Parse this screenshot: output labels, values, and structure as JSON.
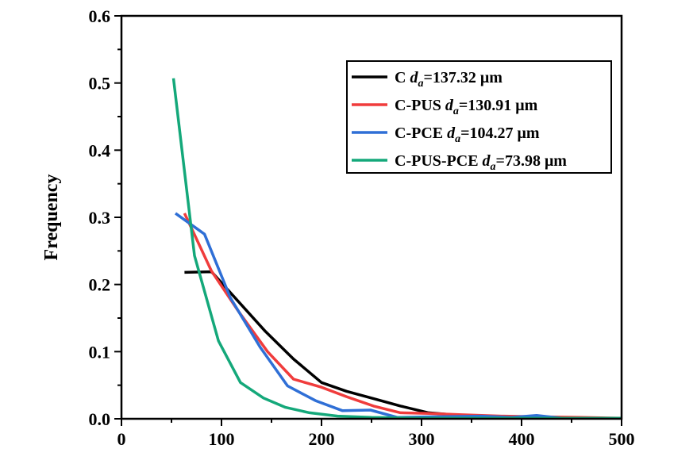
{
  "chart_data": {
    "type": "line",
    "title": "",
    "xlabel": "",
    "ylabel": "Frequency",
    "xlim": [
      0,
      500
    ],
    "ylim": [
      0,
      0.6
    ],
    "xticks": [
      "0",
      "100",
      "200",
      "300",
      "400",
      "500"
    ],
    "yticks": [
      "0.0",
      "0.1",
      "0.2",
      "0.3",
      "0.4",
      "0.5",
      "0.6"
    ],
    "legend_position": "top-right",
    "series": [
      {
        "name": "C",
        "label_value": "=137.32 μm",
        "color": "#000000",
        "x": [
          63,
          90,
          144,
          172,
          200,
          225,
          252,
          279,
          307,
          339,
          380,
          420,
          460,
          500
        ],
        "y": [
          0.218,
          0.219,
          0.13,
          0.089,
          0.054,
          0.041,
          0.03,
          0.019,
          0.009,
          0.005,
          0.003,
          0.002,
          0.001,
          0.001
        ]
      },
      {
        "name": "C-PUS",
        "label_value": "=130.91 μm",
        "color": "#f03c3c",
        "x": [
          63,
          90,
          117,
          146,
          172,
          200,
          225,
          252,
          279,
          307,
          340,
          380,
          420,
          460,
          500
        ],
        "y": [
          0.306,
          0.22,
          0.16,
          0.1,
          0.059,
          0.047,
          0.033,
          0.019,
          0.009,
          0.008,
          0.006,
          0.004,
          0.003,
          0.002,
          0.001
        ]
      },
      {
        "name": "C-PCE",
        "label_value": "=104.27 μm",
        "color": "#2f6fd6",
        "x": [
          54,
          83,
          109,
          139,
          166,
          194,
          221,
          249,
          276,
          310,
          360,
          390,
          415,
          440,
          500
        ],
        "y": [
          0.306,
          0.275,
          0.18,
          0.106,
          0.049,
          0.027,
          0.012,
          0.013,
          0.002,
          0.003,
          0.004,
          0.002,
          0.005,
          0.001,
          0.001
        ]
      },
      {
        "name": "C-PUS-PCE",
        "label_value": "=73.98 μm",
        "color": "#14a87a",
        "x": [
          52,
          73,
          97,
          119,
          142,
          164,
          188,
          216,
          250,
          300,
          400,
          500
        ],
        "y": [
          0.507,
          0.243,
          0.116,
          0.054,
          0.031,
          0.017,
          0.009,
          0.004,
          0.002,
          0.001,
          0.001,
          0.001
        ]
      }
    ]
  }
}
